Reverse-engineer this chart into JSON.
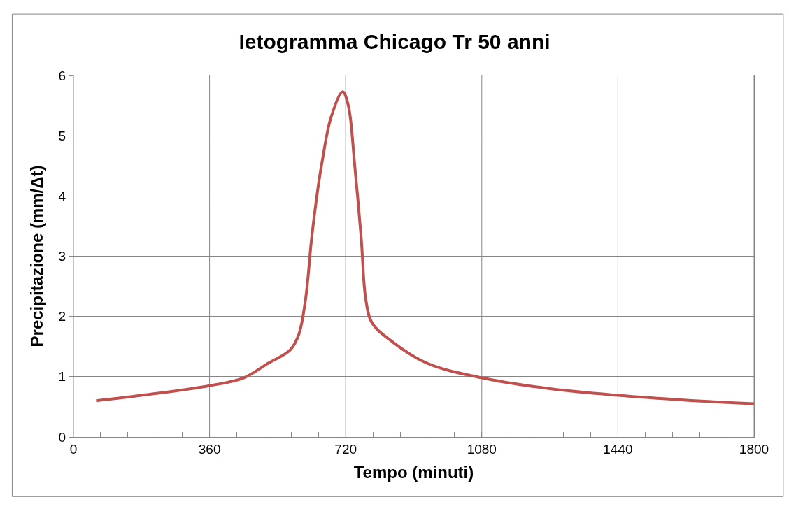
{
  "chart_data": {
    "type": "line",
    "title": "Ietogramma Chicago Tr 50 anni",
    "xlabel": "Tempo (minuti)",
    "ylabel": "Precipitazione (mm/Δt)",
    "x": [
      60,
      180,
      360,
      450,
      509,
      574,
      596,
      614,
      630,
      646,
      658,
      681,
      712,
      727,
      744,
      761,
      773,
      789,
      835,
      933,
      1080,
      1260,
      1440,
      1620,
      1800
    ],
    "series": [
      {
        "color": "#c0504d",
        "values": [
          0.6,
          0.69,
          0.85,
          0.98,
          1.2,
          1.45,
          1.7,
          2.29,
          3.3,
          4.1,
          4.58,
          5.3,
          5.73,
          5.5,
          4.5,
          3.3,
          2.29,
          1.9,
          1.62,
          1.23,
          0.98,
          0.8,
          0.69,
          0.61,
          0.55
        ]
      }
    ],
    "xlim": [
      0,
      1800
    ],
    "xticks": [
      0,
      {
        "value": 72,
        "label": null
      },
      {
        "value": 144,
        "label": null
      },
      {
        "value": 216,
        "label": null
      },
      {
        "value": 288,
        "label": null
      },
      360,
      {
        "value": 432,
        "label": null
      },
      {
        "value": 504,
        "label": null
      },
      {
        "value": 576,
        "label": null
      },
      {
        "value": 648,
        "label": null
      },
      720,
      {
        "value": 792,
        "label": null
      },
      {
        "value": 864,
        "label": null
      },
      {
        "value": 936,
        "label": null
      },
      {
        "value": 1008,
        "label": null
      },
      1080,
      {
        "value": 1152,
        "label": null
      },
      {
        "value": 1224,
        "label": null
      },
      {
        "value": 1296,
        "label": null
      },
      {
        "value": 1368,
        "label": null
      },
      1440,
      {
        "value": 1512,
        "label": null
      },
      {
        "value": 1584,
        "label": null
      },
      {
        "value": 1656,
        "label": null
      },
      {
        "value": 1728,
        "label": null
      },
      1800
    ],
    "ylim": [
      0,
      6
    ],
    "yticks": [
      0,
      1,
      2,
      3,
      4,
      5,
      6
    ],
    "grid": true,
    "legend": false,
    "marker": "none",
    "line_style": "solid"
  }
}
